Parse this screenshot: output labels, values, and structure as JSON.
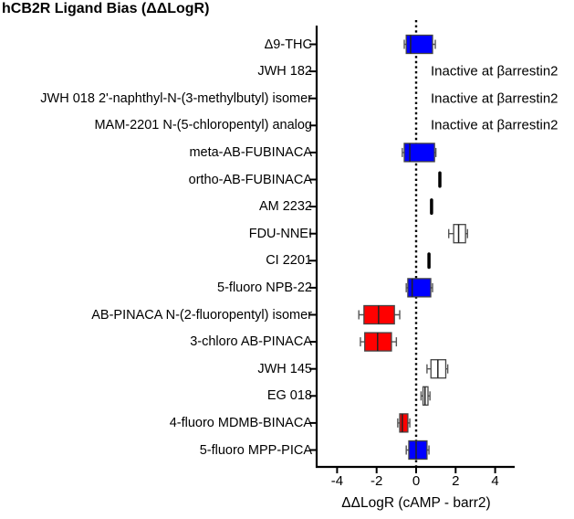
{
  "chart_data": {
    "type": "boxplot",
    "orientation": "horizontal",
    "title": "hCB2R Ligand Bias (ΔΔLogR)",
    "xlabel": "ΔΔLogR (cAMP - barr2)",
    "ylabel": "",
    "xlim": [
      -5,
      5
    ],
    "xticks": [
      -4,
      -2,
      0,
      2,
      4
    ],
    "reference_line": {
      "x": 0,
      "style": "dotted"
    },
    "grid": false,
    "legend": null,
    "colors": {
      "biased_cAMP": "#0000ff",
      "biased_barr2": "#ff0000",
      "unbiased": "#ffffff",
      "narrow": "#000000"
    },
    "categories": [
      "Δ9-THC",
      "JWH 182",
      "JWH 018 2'-naphthyl-N-(3-methylbutyl) isomer",
      "MAM-2201 N-(5-chloropentyl) analog",
      "meta-AB-FUBINACA",
      "ortho-AB-FUBINACA",
      "AM 2232",
      "FDU-NNEI",
      "CI 2201",
      "5-fluoro NPB-22",
      "AB-PINACA N-(2-fluoropentyl) isomer",
      "3-chloro AB-PINACA",
      "JWH 145",
      "EG 018",
      "4-fluoro MDMB-BINACA",
      "5-fluoro MPP-PICA"
    ],
    "series": [
      {
        "name": "Δ9-THC",
        "min": -0.6,
        "q1": -0.5,
        "median": -0.28,
        "q3": 0.83,
        "max": 0.97,
        "color": "#0000ff"
      },
      {
        "name": "JWH 182",
        "annotation": "Inactive at βarrestin2"
      },
      {
        "name": "JWH 018 2'-naphthyl-N-(3-methylbutyl) isomer",
        "annotation": "Inactive at βarrestin2"
      },
      {
        "name": "MAM-2201 N-(5-chloropentyl) analog",
        "annotation": "Inactive at βarrestin2"
      },
      {
        "name": "meta-AB-FUBINACA",
        "min": -0.7,
        "q1": -0.6,
        "median": -0.32,
        "q3": 0.93,
        "max": 1.0,
        "color": "#0000ff"
      },
      {
        "name": "ortho-AB-FUBINACA",
        "min": 1.12,
        "q1": 1.15,
        "median": 1.2,
        "q3": 1.25,
        "max": 1.28,
        "color": "#000000"
      },
      {
        "name": "AM 2232",
        "min": 0.7,
        "q1": 0.73,
        "median": 0.78,
        "q3": 0.82,
        "max": 0.85,
        "color": "#000000"
      },
      {
        "name": "FDU-NNEI",
        "min": 1.65,
        "q1": 1.9,
        "median": 2.15,
        "q3": 2.5,
        "max": 2.6,
        "color": "#ffffff"
      },
      {
        "name": "CI 2201",
        "min": 0.57,
        "q1": 0.6,
        "median": 0.65,
        "q3": 0.69,
        "max": 0.72,
        "color": "#000000"
      },
      {
        "name": "5-fluoro NPB-22",
        "min": -0.5,
        "q1": -0.42,
        "median": -0.2,
        "q3": 0.74,
        "max": 0.83,
        "color": "#0000ff"
      },
      {
        "name": "AB-PINACA N-(2-fluoropentyl) isomer",
        "min": -2.9,
        "q1": -2.64,
        "median": -1.9,
        "q3": -1.1,
        "max": -0.83,
        "color": "#ff0000"
      },
      {
        "name": "3-chloro AB-PINACA",
        "min": -2.82,
        "q1": -2.6,
        "median": -1.95,
        "q3": -1.25,
        "max": -1.0,
        "color": "#ff0000"
      },
      {
        "name": "JWH 145",
        "min": 0.55,
        "q1": 0.75,
        "median": 1.1,
        "q3": 1.5,
        "max": 1.6,
        "color": "#ffffff"
      },
      {
        "name": "EG 018",
        "min": 0.25,
        "q1": 0.35,
        "median": 0.45,
        "q3": 0.6,
        "max": 0.7,
        "color": "#ffffff"
      },
      {
        "name": "4-fluoro MDMB-BINACA",
        "min": -0.93,
        "q1": -0.83,
        "median": -0.7,
        "q3": -0.42,
        "max": -0.32,
        "color": "#ff0000"
      },
      {
        "name": "5-fluoro MPP-PICA",
        "min": -0.5,
        "q1": -0.37,
        "median": 0.0,
        "q3": 0.55,
        "max": 0.65,
        "color": "#0000ff"
      }
    ]
  },
  "labels": {
    "title": "hCB2R Ligand Bias (ΔΔLogR)",
    "xlabel": "ΔΔLogR (cAMP - barr2)",
    "inactive": "Inactive at βarrestin2",
    "ticks": [
      "-4",
      "-2",
      "0",
      "2",
      "4"
    ]
  }
}
